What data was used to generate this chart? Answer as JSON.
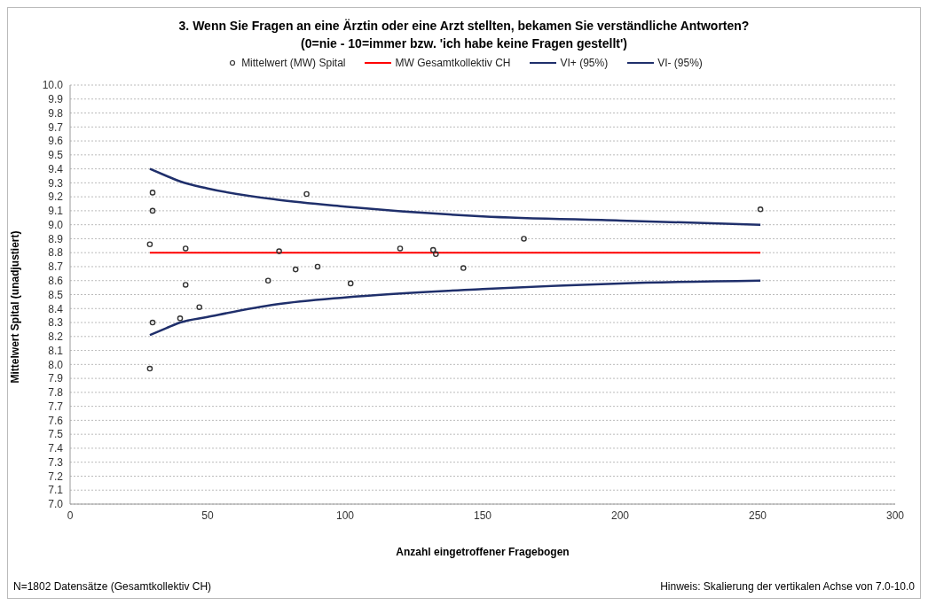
{
  "chart_data": {
    "type": "scatter",
    "title": "3. Wenn Sie Fragen an eine Ärztin oder eine Arzt stellten, bekamen Sie verständliche Antworten?",
    "subtitle": "(0=nie - 10=immer bzw. 'ich habe keine Fragen gestellt')",
    "xlabel": "Anzahl eingetroffener Fragebogen",
    "ylabel": "Mittelwert Spital (unadjustiert)",
    "annotations": [
      "N=1802 Datensätze (Gesamtkollektiv CH)",
      "Hinweis: Skalierung der vertikalen Achse von 7.0-10.0"
    ],
    "xlim": [
      0,
      300
    ],
    "xticks": [
      0,
      50,
      100,
      150,
      200,
      250,
      300
    ],
    "ylim": [
      7,
      10
    ],
    "yticks": [
      {
        "value": 7,
        "label": "7.0"
      },
      7.1,
      7.2,
      7.3,
      7.4,
      7.5,
      7.6,
      7.7,
      7.8,
      7.9,
      {
        "value": 8,
        "label": "8.0"
      },
      8.1,
      8.2,
      8.3,
      8.4,
      8.5,
      8.6,
      8.7,
      8.8,
      8.9,
      {
        "value": 9,
        "label": "9.0"
      },
      9.1,
      9.2,
      9.3,
      9.4,
      9.5,
      9.6,
      9.7,
      9.8,
      9.9,
      {
        "value": 10,
        "label": "10.0"
      }
    ],
    "grid": "y",
    "legend": "top",
    "series": [
      {
        "name": "Mittelwert (MW) Spital",
        "marker": "circle",
        "color": "#333333",
        "x": [
          29,
          29,
          30,
          30,
          30,
          40,
          42,
          42,
          47,
          72,
          76,
          82,
          86,
          90,
          102,
          120,
          132,
          133,
          143,
          165,
          251
        ],
        "values": [
          8.86,
          7.97,
          8.3,
          9.23,
          9.1,
          8.33,
          8.83,
          8.57,
          8.41,
          8.6,
          8.81,
          8.68,
          9.22,
          8.7,
          8.58,
          8.83,
          8.82,
          8.79,
          8.69,
          8.9,
          9.11
        ]
      },
      {
        "name": "MW Gesamtkollektiv CH",
        "type": "line",
        "color": "#ff0000",
        "x": [
          29,
          251
        ],
        "values": [
          8.8,
          8.8
        ]
      },
      {
        "name": "VI+ (95%)",
        "type": "line",
        "color": "#1f2f6b",
        "x": [
          29,
          35,
          40,
          50,
          75,
          100,
          150,
          200,
          251
        ],
        "values": [
          9.4,
          9.35,
          9.31,
          9.26,
          9.18,
          9.13,
          9.06,
          9.03,
          9.0
        ]
      },
      {
        "name": "VI- (95%)",
        "type": "line",
        "color": "#1f2f6b",
        "x": [
          29,
          35,
          40,
          50,
          75,
          100,
          150,
          200,
          251
        ],
        "values": [
          8.21,
          8.26,
          8.3,
          8.34,
          8.43,
          8.48,
          8.54,
          8.58,
          8.6
        ]
      }
    ]
  }
}
